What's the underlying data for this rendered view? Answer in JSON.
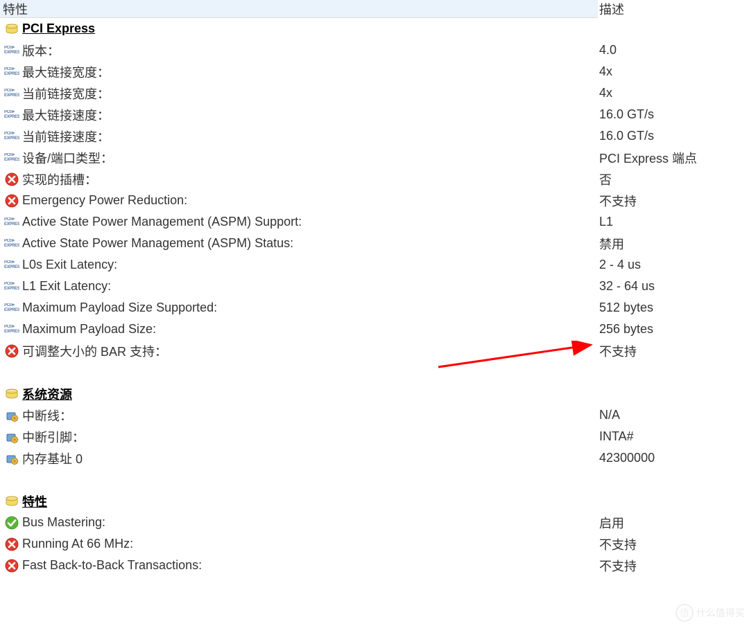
{
  "header": {
    "col1": "特性",
    "col2": "描述"
  },
  "sections": {
    "pci": {
      "title": "PCI Express",
      "rows": [
        {
          "icon": "pci",
          "label": "版本：",
          "value": "4.0"
        },
        {
          "icon": "pci",
          "label": "最大链接宽度：",
          "value": "4x"
        },
        {
          "icon": "pci",
          "label": "当前链接宽度：",
          "value": "4x"
        },
        {
          "icon": "pci",
          "label": "最大链接速度：",
          "value": "16.0 GT/s"
        },
        {
          "icon": "pci",
          "label": "当前链接速度：",
          "value": "16.0 GT/s"
        },
        {
          "icon": "pci",
          "label": "设备/端口类型：",
          "value": "PCI Express 端点"
        },
        {
          "icon": "redx",
          "label": "实现的插槽：",
          "value": "否"
        },
        {
          "icon": "redx",
          "label": "Emergency Power Reduction:",
          "value": "不支持"
        },
        {
          "icon": "pci",
          "label": "Active State Power Management (ASPM) Support:",
          "value": "L1"
        },
        {
          "icon": "pci",
          "label": "Active State Power Management (ASPM) Status:",
          "value": "禁用"
        },
        {
          "icon": "pci",
          "label": "L0s Exit Latency:",
          "value": "2 - 4 us"
        },
        {
          "icon": "pci",
          "label": "L1 Exit Latency:",
          "value": "32 - 64 us"
        },
        {
          "icon": "pci",
          "label": "Maximum Payload Size Supported:",
          "value": "512 bytes"
        },
        {
          "icon": "pci",
          "label": "Maximum Payload Size:",
          "value": "256 bytes"
        },
        {
          "icon": "redx",
          "label": "可调整大小的 BAR 支持：",
          "value": "不支持"
        }
      ]
    },
    "sysres": {
      "title": "系统资源",
      "rows": [
        {
          "icon": "gear",
          "label": "中断线：",
          "value": "N/A"
        },
        {
          "icon": "gear",
          "label": "中断引脚：",
          "value": "INTA#"
        },
        {
          "icon": "gear",
          "label": "内存基址 0",
          "value": "42300000"
        }
      ]
    },
    "features": {
      "title": "特性",
      "rows": [
        {
          "icon": "greencheck",
          "label": "Bus Mastering:",
          "value": "启用"
        },
        {
          "icon": "redx",
          "label": "Running At 66 MHz:",
          "value": "不支持"
        },
        {
          "icon": "redx",
          "label": "Fast Back-to-Back Transactions:",
          "value": "不支持"
        }
      ]
    }
  },
  "annotation": {
    "arrow_color": "#ff0000",
    "arrow_width": 230,
    "arrow_stroke": 3
  },
  "watermark": {
    "text": "什么值得买",
    "badge": "值"
  }
}
